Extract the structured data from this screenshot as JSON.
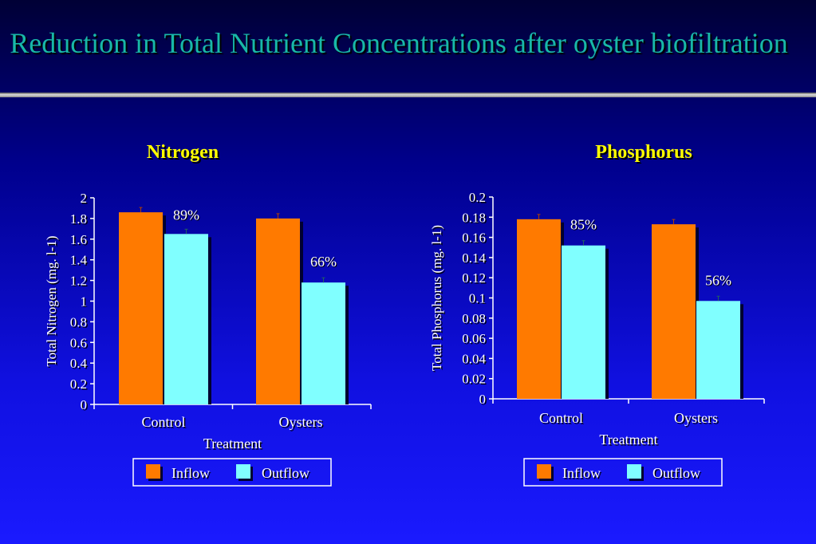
{
  "slide": {
    "title": "Reduction in Total Nutrient Concentrations after oyster biofiltration"
  },
  "colors": {
    "inflow": "#ff7a00",
    "outflow": "#80ffff",
    "title": "#18b8a8",
    "heading": "#ffff00",
    "text": "#ffffff"
  },
  "chart_data": [
    {
      "type": "bar",
      "title": "Nitrogen",
      "xlabel": "Treatment",
      "ylabel": "Total Nitrogen (mg. l-1)",
      "ylim": [
        0,
        2
      ],
      "yticks": [
        "0",
        "0.2",
        "0.4",
        "0.6",
        "0.8",
        "1",
        "1.2",
        "1.4",
        "1.6",
        "1.8",
        "2"
      ],
      "categories": [
        "Control",
        "Oysters"
      ],
      "series": [
        {
          "name": "Inflow",
          "values": [
            1.86,
            1.8
          ]
        },
        {
          "name": "Outflow",
          "values": [
            1.65,
            1.18
          ]
        }
      ],
      "annotations": [
        "89%",
        "66%"
      ],
      "legend": "bottom"
    },
    {
      "type": "bar",
      "title": "Phosphorus",
      "xlabel": "Treatment",
      "ylabel": "Total Phosphorus (mg. l-1)",
      "ylim": [
        0,
        0.2
      ],
      "yticks": [
        "0",
        "0.02",
        "0.04",
        "0.06",
        "0.08",
        "0.1",
        "0.12",
        "0.14",
        "0.16",
        "0.18",
        "0.2"
      ],
      "categories": [
        "Control",
        "Oysters"
      ],
      "series": [
        {
          "name": "Inflow",
          "values": [
            0.178,
            0.173
          ]
        },
        {
          "name": "Outflow",
          "values": [
            0.152,
            0.097
          ]
        }
      ],
      "annotations": [
        "85%",
        "56%"
      ],
      "legend": "bottom"
    }
  ]
}
